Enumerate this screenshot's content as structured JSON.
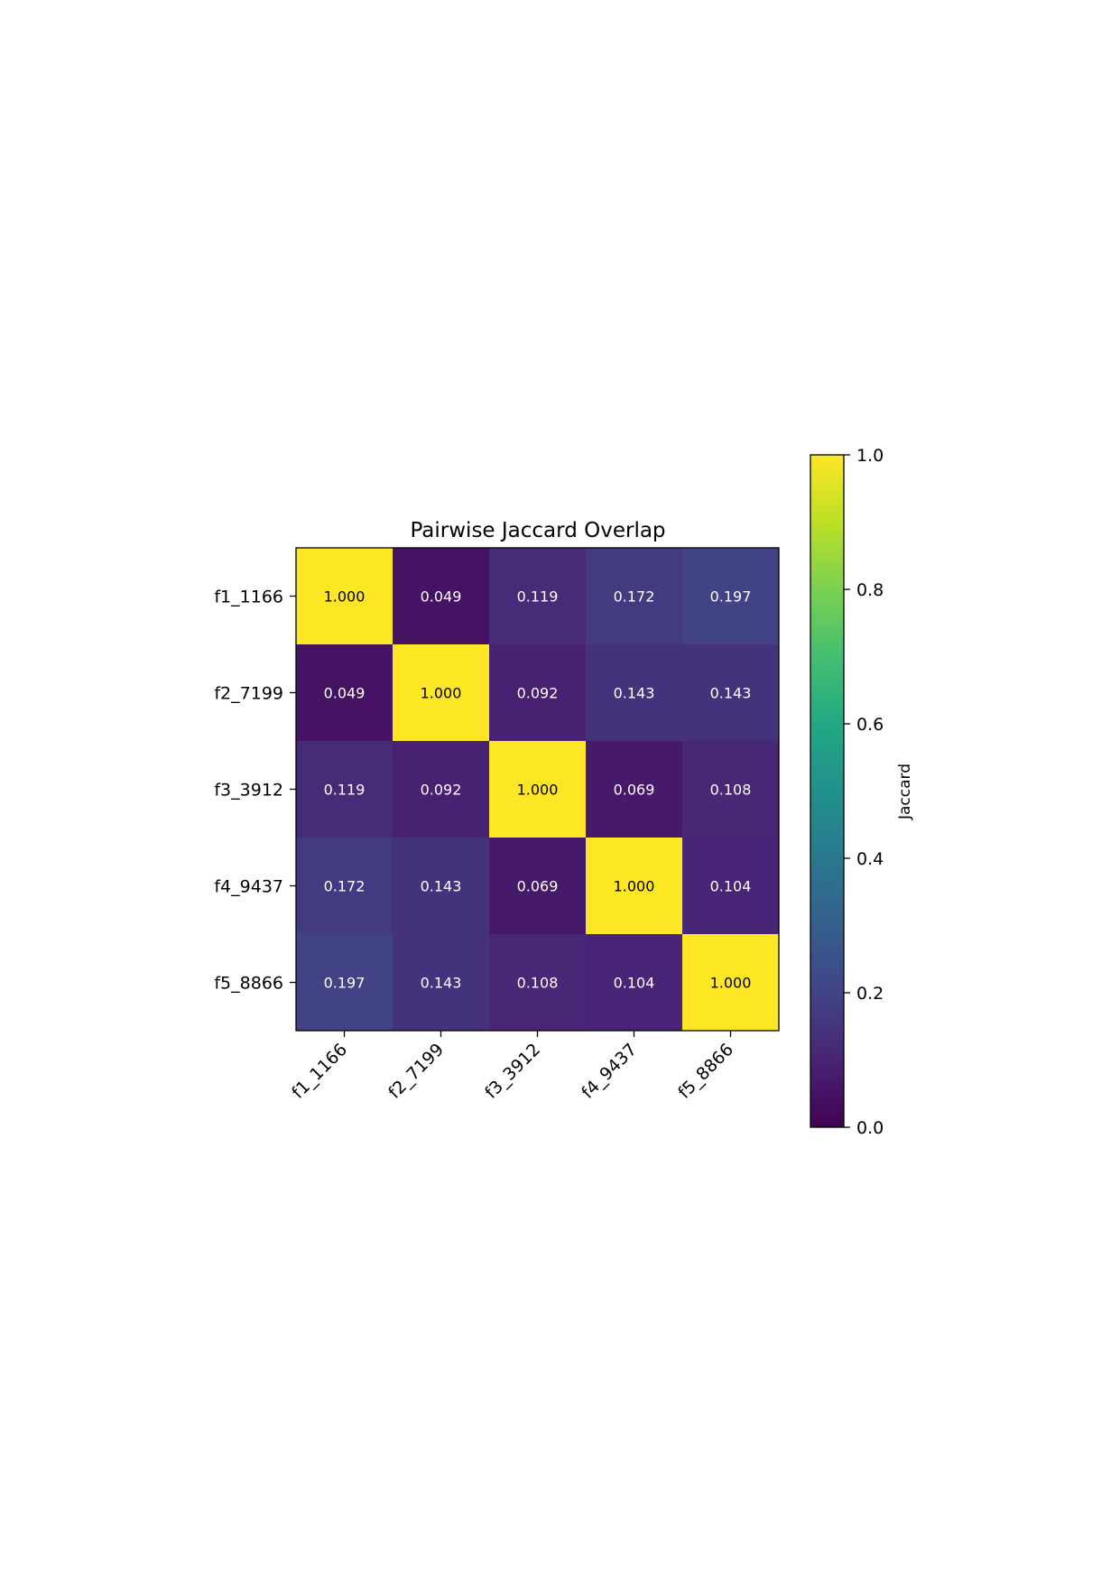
{
  "chart_data": {
    "type": "heatmap",
    "title": "Pairwise Jaccard Overlap",
    "rows": [
      "f1_1166",
      "f2_7199",
      "f3_3912",
      "f4_9437",
      "f5_8866"
    ],
    "columns": [
      "f1_1166",
      "f2_7199",
      "f3_3912",
      "f4_9437",
      "f5_8866"
    ],
    "values": [
      [
        1.0,
        0.049,
        0.119,
        0.172,
        0.197
      ],
      [
        0.049,
        1.0,
        0.092,
        0.143,
        0.143
      ],
      [
        0.119,
        0.092,
        1.0,
        0.069,
        0.108
      ],
      [
        0.172,
        0.143,
        0.069,
        1.0,
        0.104
      ],
      [
        0.197,
        0.143,
        0.108,
        0.104,
        1.0
      ]
    ],
    "value_format": "3 decimals",
    "colormap": "viridis",
    "colorbar": {
      "label": "Jaccard",
      "range": [
        0.0,
        1.0
      ],
      "ticks": [
        "0.0",
        "0.2",
        "0.4",
        "0.6",
        "0.8",
        "1.0"
      ]
    },
    "x_tick_rotation_deg": 45
  }
}
